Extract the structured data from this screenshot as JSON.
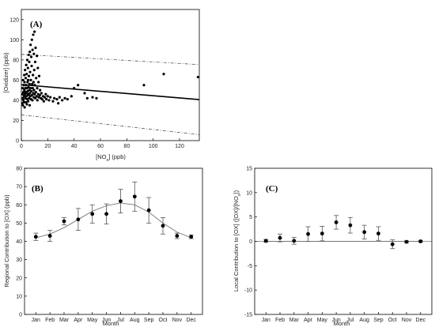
{
  "chart_data": [
    {
      "panel": "(A)",
      "type": "scatter",
      "xlabel": "[NO",
      "xlabel_sub": "x",
      "xlabel_tail": "] (ppb)",
      "ylabel": "[Oxidizer] (ppb)",
      "xlim": [
        0,
        135
      ],
      "ylim": [
        0,
        130
      ],
      "xticks": [
        0,
        20,
        40,
        60,
        80,
        100,
        120
      ],
      "yticks": [
        0,
        20,
        40,
        60,
        80,
        100,
        120
      ],
      "regression": {
        "intercept": 55.5,
        "slope": -0.11,
        "style": "solid"
      },
      "bands": [
        {
          "intercept": 85.5,
          "slope": -0.075,
          "style": "dashed"
        },
        {
          "intercept": 25.5,
          "slope": -0.145,
          "style": "dashed"
        }
      ],
      "points": [
        [
          0.6,
          37
        ],
        [
          0.8,
          46
        ],
        [
          1,
          52
        ],
        [
          1,
          42
        ],
        [
          1.2,
          35
        ],
        [
          1.3,
          60
        ],
        [
          1.5,
          48
        ],
        [
          1.6,
          40
        ],
        [
          1.8,
          55
        ],
        [
          2,
          44
        ],
        [
          2,
          38
        ],
        [
          2.2,
          65
        ],
        [
          2.3,
          50
        ],
        [
          2.4,
          58
        ],
        [
          2.5,
          33
        ],
        [
          2.6,
          46
        ],
        [
          2.8,
          70
        ],
        [
          3,
          42
        ],
        [
          3,
          52
        ],
        [
          3.2,
          48
        ],
        [
          3.3,
          62
        ],
        [
          3.5,
          38
        ],
        [
          3.6,
          55
        ],
        [
          3.7,
          75
        ],
        [
          3.8,
          44
        ],
        [
          4,
          47
        ],
        [
          4,
          66
        ],
        [
          4.2,
          36
        ],
        [
          4.3,
          52
        ],
        [
          4.5,
          80
        ],
        [
          4.5,
          41
        ],
        [
          4.7,
          58
        ],
        [
          4.8,
          49
        ],
        [
          5,
          45
        ],
        [
          5,
          72
        ],
        [
          5.1,
          60
        ],
        [
          5.2,
          39
        ],
        [
          5.4,
          53
        ],
        [
          5.5,
          85
        ],
        [
          5.6,
          46
        ],
        [
          5.7,
          64
        ],
        [
          5.8,
          42
        ],
        [
          6,
          50
        ],
        [
          6,
          78
        ],
        [
          6.2,
          56
        ],
        [
          6.3,
          35
        ],
        [
          6.4,
          88
        ],
        [
          6.5,
          47
        ],
        [
          6.6,
          68
        ],
        [
          6.8,
          44
        ],
        [
          7,
          52
        ],
        [
          7,
          95
        ],
        [
          7.2,
          60
        ],
        [
          7.3,
          41
        ],
        [
          7.5,
          83
        ],
        [
          7.6,
          49
        ],
        [
          7.8,
          74
        ],
        [
          8,
          45
        ],
        [
          8,
          100
        ],
        [
          8.2,
          56
        ],
        [
          8.4,
          40
        ],
        [
          8.5,
          90
        ],
        [
          8.6,
          52
        ],
        [
          8.8,
          65
        ],
        [
          9,
          47
        ],
        [
          9,
          105
        ],
        [
          9.2,
          58
        ],
        [
          9.4,
          43
        ],
        [
          9.5,
          86
        ],
        [
          9.6,
          50
        ],
        [
          9.8,
          70
        ],
        [
          10,
          46
        ],
        [
          10,
          108
        ],
        [
          10.2,
          55
        ],
        [
          10.5,
          78
        ],
        [
          10.6,
          42
        ],
        [
          10.8,
          92
        ],
        [
          11,
          48
        ],
        [
          11.2,
          62
        ],
        [
          11.5,
          44
        ],
        [
          11.8,
          84
        ],
        [
          12,
          52
        ],
        [
          12.2,
          40
        ],
        [
          12.5,
          72
        ],
        [
          12.8,
          46
        ],
        [
          13,
          58
        ],
        [
          13.2,
          43
        ],
        [
          13.5,
          64
        ],
        [
          14,
          45
        ],
        [
          14.2,
          50
        ],
        [
          14.8,
          42
        ],
        [
          15.2,
          47
        ],
        [
          15.8,
          41
        ],
        [
          16.5,
          44
        ],
        [
          17,
          39
        ],
        [
          17.8,
          43
        ],
        [
          18.5,
          46
        ],
        [
          19,
          41
        ],
        [
          20,
          44
        ],
        [
          21,
          40
        ],
        [
          22,
          43
        ],
        [
          24,
          39
        ],
        [
          25,
          42
        ],
        [
          27,
          41
        ],
        [
          28,
          37
        ],
        [
          29,
          43
        ],
        [
          31,
          40
        ],
        [
          33,
          42
        ],
        [
          35,
          41
        ],
        [
          38,
          44
        ],
        [
          40,
          52
        ],
        [
          43,
          55
        ],
        [
          48,
          47
        ],
        [
          50,
          42
        ],
        [
          54,
          43
        ],
        [
          57,
          42
        ],
        [
          93,
          55
        ],
        [
          108,
          66
        ],
        [
          134,
          63
        ]
      ]
    },
    {
      "panel": "(B)",
      "type": "line",
      "xlabel": "Month",
      "ylabel": "Regional Contribution to [OX] (ppb)",
      "categories": [
        "Jan",
        "Feb",
        "Mar",
        "Apr",
        "May",
        "Jun",
        "Jul",
        "Aug",
        "Sep",
        "Oct",
        "Nov",
        "Dec"
      ],
      "ylim": [
        0,
        80
      ],
      "yticks": [
        0,
        10,
        20,
        30,
        40,
        50,
        60,
        70,
        80
      ],
      "values": [
        42.5,
        43,
        51,
        52,
        55,
        55,
        62,
        64.5,
        57,
        48.5,
        43,
        42.5
      ],
      "errors": [
        2,
        3,
        2,
        6,
        5,
        5.5,
        6.5,
        8,
        7,
        4.5,
        1.5,
        1
      ],
      "fit": [
        42,
        44,
        47.5,
        52,
        56.5,
        59.5,
        61,
        60,
        56,
        50,
        45,
        42
      ]
    },
    {
      "panel": "(C)",
      "type": "line",
      "xlabel": "Month",
      "ylabel": "Local Contribution to [OX] ([OX]/[NO",
      "ylabel_sub": "x",
      "ylabel_tail": "])",
      "categories": [
        "Jan",
        "Feb",
        "Mar",
        "Apr",
        "May",
        "Jun",
        "Jul",
        "Aug",
        "Sep",
        "Oct",
        "Nov",
        "Dec"
      ],
      "ylim": [
        -15,
        15
      ],
      "yticks": [
        -15,
        -10,
        -5,
        0,
        5,
        10,
        15
      ],
      "values": [
        0.1,
        0.7,
        0.1,
        1.5,
        1.6,
        3.9,
        3.3,
        1.9,
        1.6,
        -0.6,
        -0.1,
        0
      ],
      "errors": [
        0.3,
        0.8,
        0.7,
        1.5,
        1.5,
        1.4,
        1.6,
        1.4,
        1.4,
        0.9,
        0.2,
        0.2
      ],
      "fit": [
        0,
        0,
        0,
        0,
        0,
        0,
        0,
        0,
        0,
        0,
        0,
        0
      ]
    }
  ]
}
